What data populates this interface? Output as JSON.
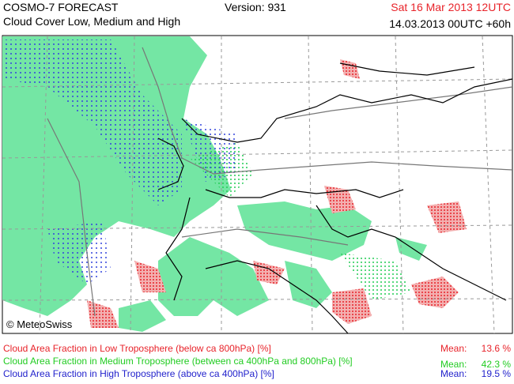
{
  "header": {
    "title": "COSMO-7 FORECAST",
    "subtitle": "Cloud Cover Low, Medium and High",
    "version": "Version: 931",
    "valid_time": "Sat 16 Mar 2013 12UTC",
    "run": "14.03.2013 00UTC +60h"
  },
  "map": {
    "credit": "© MeteoSwiss"
  },
  "legend": [
    {
      "label": "Cloud Area Fraction in Low Troposphere (below ca 800hPa) [%]",
      "mean_label": "Mean:",
      "mean": "13.6 %",
      "color": "#e8232a"
    },
    {
      "label": "Cloud Area Fraction in Medium Troposphere (between ca 400hPa and 800hPa) [%]",
      "mean_label": "Mean:",
      "mean": "42.3 %",
      "color": "#22cc22"
    },
    {
      "label": "Cloud Area Fraction in High Troposphere (above ca 400hPa) [%]",
      "mean_label": "Mean:",
      "mean": "19.5 %",
      "color": "#2222cc"
    }
  ]
}
